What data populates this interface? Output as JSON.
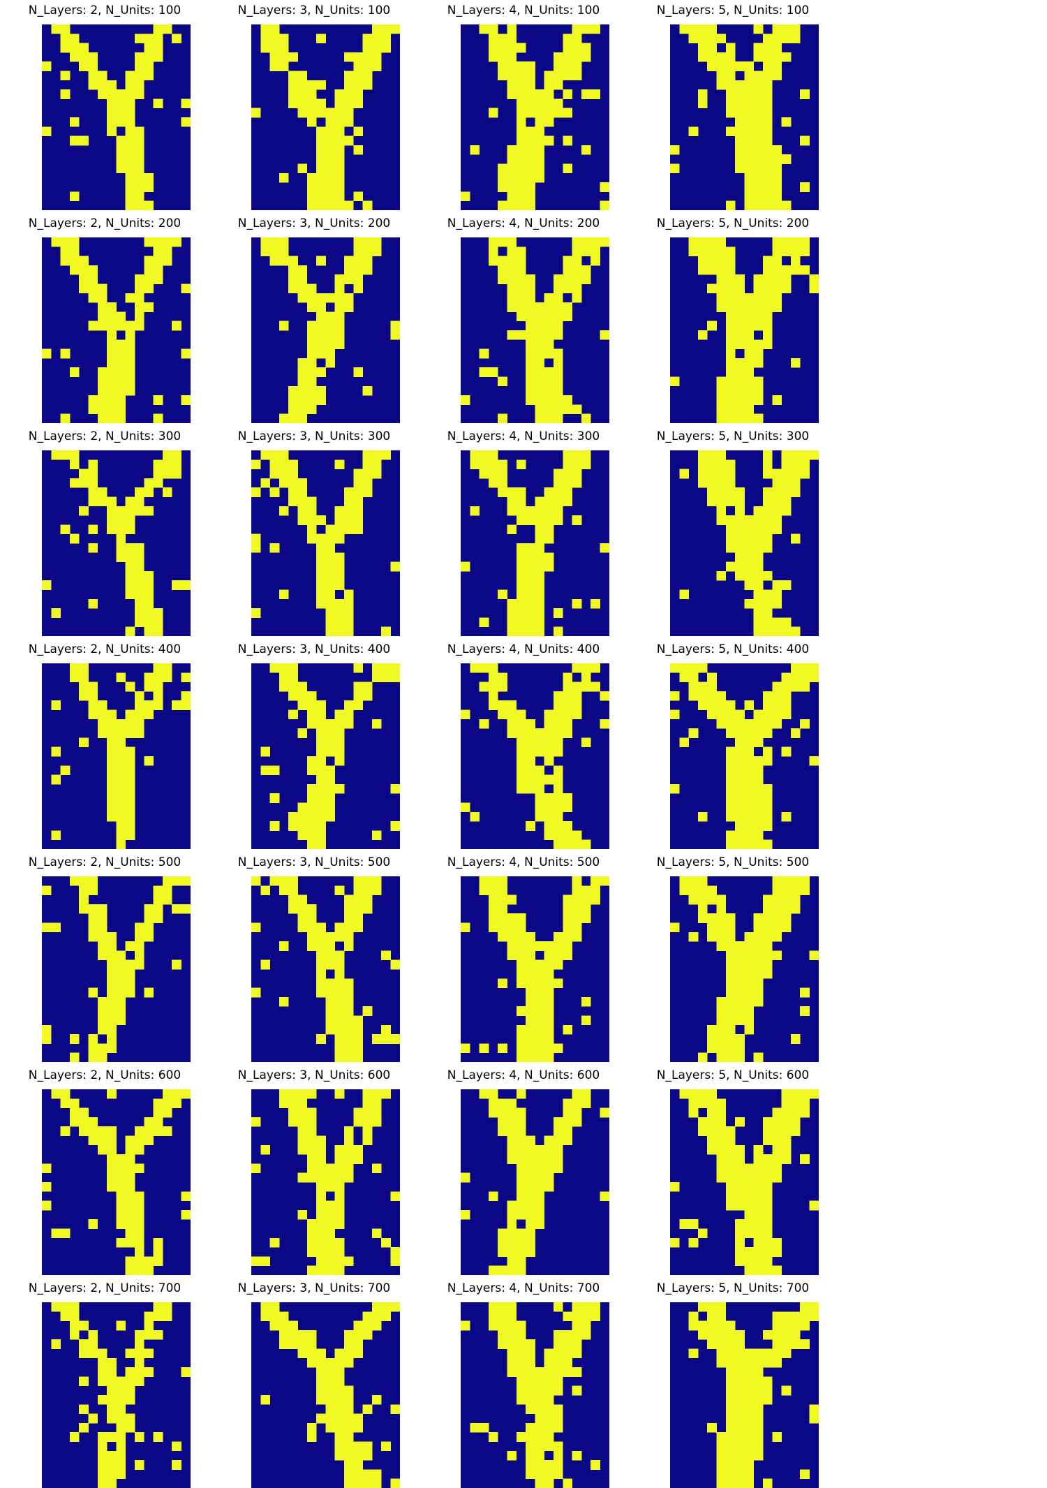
{
  "chart_data": {
    "type": "heatmap",
    "colors": {
      "background": "#0b0887",
      "foreground": "#f0f921"
    },
    "rows": 20,
    "cols": 16,
    "panels": [
      {
        "title": "N_Layers: 2, N_Units: 100"
      },
      {
        "title": "N_Layers: 3, N_Units: 100"
      },
      {
        "title": "N_Layers: 4, N_Units: 100"
      },
      {
        "title": "N_Layers: 5, N_Units: 100"
      },
      {
        "title": "N_Layers: 2, N_Units: 200"
      },
      {
        "title": "N_Layers: 3, N_Units: 200"
      },
      {
        "title": "N_Layers: 4, N_Units: 200"
      },
      {
        "title": "N_Layers: 5, N_Units: 200"
      },
      {
        "title": "N_Layers: 2, N_Units: 300"
      },
      {
        "title": "N_Layers: 3, N_Units: 300"
      },
      {
        "title": "N_Layers: 4, N_Units: 300"
      },
      {
        "title": "N_Layers: 5, N_Units: 300"
      },
      {
        "title": "N_Layers: 2, N_Units: 400"
      },
      {
        "title": "N_Layers: 3, N_Units: 400"
      },
      {
        "title": "N_Layers: 4, N_Units: 400"
      },
      {
        "title": "N_Layers: 5, N_Units: 400"
      },
      {
        "title": "N_Layers: 2, N_Units: 500"
      },
      {
        "title": "N_Layers: 3, N_Units: 500"
      },
      {
        "title": "N_Layers: 4, N_Units: 500"
      },
      {
        "title": "N_Layers: 5, N_Units: 500"
      },
      {
        "title": "N_Layers: 2, N_Units: 600"
      },
      {
        "title": "N_Layers: 3, N_Units: 600"
      },
      {
        "title": "N_Layers: 4, N_Units: 600"
      },
      {
        "title": "N_Layers: 5, N_Units: 600"
      },
      {
        "title": "N_Layers: 2, N_Units: 700"
      },
      {
        "title": "N_Layers: 3, N_Units: 700"
      },
      {
        "title": "N_Layers: 4, N_Units: 700"
      },
      {
        "title": "N_Layers: 5, N_Units: 700"
      }
    ]
  }
}
